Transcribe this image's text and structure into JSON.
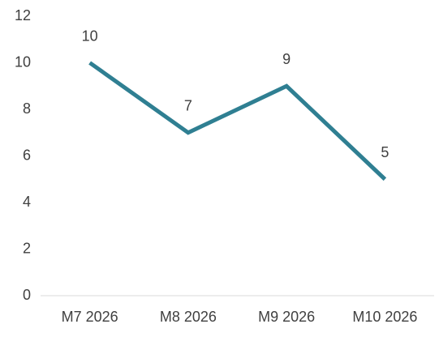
{
  "chart_data": {
    "type": "line",
    "categories": [
      "M7 2026",
      "M8 2026",
      "M9 2026",
      "M10 2026"
    ],
    "values": [
      10,
      7,
      9,
      5
    ],
    "color": "#2f7f92",
    "ylim": [
      0,
      12
    ],
    "yticks": [
      0,
      2,
      4,
      6,
      8,
      10,
      12
    ],
    "grid": false
  }
}
